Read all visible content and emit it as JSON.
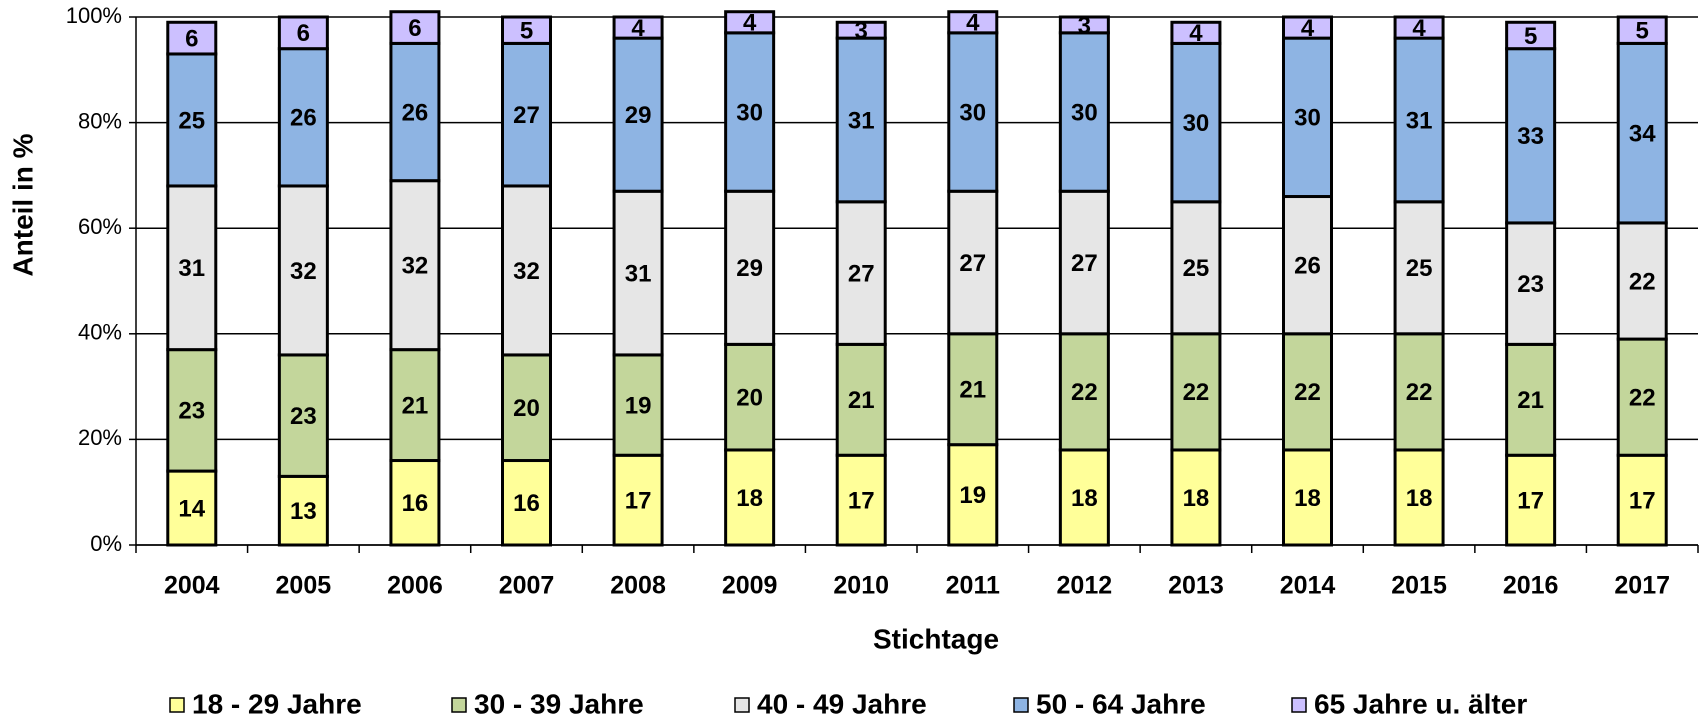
{
  "chart_data": {
    "type": "stacked_bar",
    "y_label": "Anteil in %",
    "x_label": "Stichtage",
    "categories": [
      "2004",
      "2005",
      "2006",
      "2007",
      "2008",
      "2009",
      "2010",
      "2011",
      "2012",
      "2013",
      "2014",
      "2015",
      "2016",
      "2017"
    ],
    "series": [
      {
        "name": "18 - 29 Jahre",
        "color": "#ffff99",
        "values": [
          14,
          13,
          16,
          16,
          17,
          18,
          17,
          19,
          18,
          18,
          18,
          18,
          17,
          17
        ]
      },
      {
        "name": "30 - 39 Jahre",
        "color": "#c3d69b",
        "values": [
          23,
          23,
          21,
          20,
          19,
          20,
          21,
          21,
          22,
          22,
          22,
          22,
          21,
          22
        ]
      },
      {
        "name": "40 - 49 Jahre",
        "color": "#e6e6e6",
        "values": [
          31,
          32,
          32,
          32,
          31,
          29,
          27,
          27,
          27,
          25,
          26,
          25,
          23,
          22
        ]
      },
      {
        "name": "50 - 64 Jahre",
        "color": "#8eb4e3",
        "values": [
          25,
          26,
          26,
          27,
          29,
          30,
          31,
          30,
          30,
          30,
          30,
          31,
          33,
          34
        ]
      },
      {
        "name": "65 Jahre u. älter",
        "color": "#ccc0ff",
        "values": [
          6,
          6,
          6,
          5,
          4,
          4,
          3,
          4,
          3,
          4,
          4,
          4,
          5,
          5
        ]
      }
    ],
    "ylim": [
      0,
      100
    ],
    "yticks": [
      {
        "value": 0,
        "label": "0%"
      },
      {
        "value": 20,
        "label": "20%"
      },
      {
        "value": 40,
        "label": "40%"
      },
      {
        "value": 60,
        "label": "60%"
      },
      {
        "value": 80,
        "label": "80%"
      },
      {
        "value": 100,
        "label": "100%"
      }
    ],
    "grid": true,
    "legend": "bottom"
  }
}
